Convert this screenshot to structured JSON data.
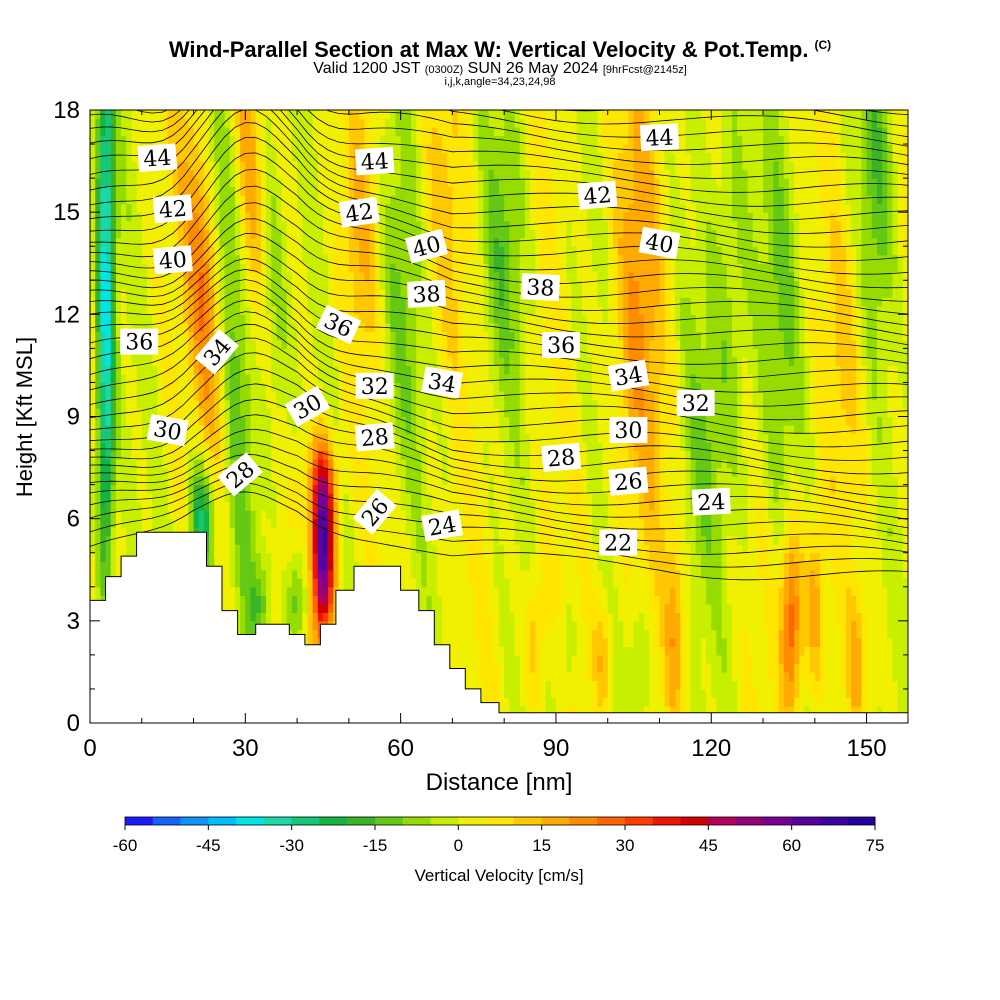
{
  "header": {
    "title": "Wind-Parallel Section at Max W: Vertical Velocity & Pot.Temp.",
    "title_mark": "(C)",
    "subtitle_main_a": "Valid 1200 JST",
    "subtitle_small_a": "(0300Z)",
    "subtitle_main_b": "SUN 26 May 2024",
    "subtitle_small_b": "[9hrFcst@2145z]",
    "subtitle2": "i,j,k,angle=34,23,24,98"
  },
  "chart_data": {
    "type": "heatmap",
    "xlabel": "Distance [nm]",
    "ylabel": "Height [Kft MSL]",
    "xlim": [
      0,
      158
    ],
    "ylim": [
      0,
      18
    ],
    "xticks": [
      0,
      30,
      60,
      90,
      120,
      150
    ],
    "yticks": [
      0,
      3,
      6,
      9,
      12,
      15,
      18
    ],
    "colorbar": {
      "label": "Vertical Velocity [cm/s]",
      "ticks": [
        -60,
        -45,
        -30,
        -15,
        0,
        15,
        30,
        45,
        60,
        75
      ],
      "min": -60,
      "max": 75,
      "step": 5,
      "colors": [
        "#1a1aff",
        "#1463ff",
        "#0b92ff",
        "#00bfff",
        "#00e5e5",
        "#1ad9a8",
        "#14c878",
        "#14b444",
        "#3cb428",
        "#64c814",
        "#96dc00",
        "#c8ee00",
        "#f0f000",
        "#ffe600",
        "#ffc800",
        "#ffaa00",
        "#ff8c00",
        "#ff6400",
        "#ff3c00",
        "#ee1400",
        "#d20000",
        "#b4005a",
        "#960078",
        "#780096",
        "#5a00a0",
        "#3c00a0",
        "#28009c"
      ]
    },
    "theta_labels": [
      {
        "v": "44",
        "x": 13,
        "y": 16.6,
        "r": -4
      },
      {
        "v": "44",
        "x": 55,
        "y": 16.5,
        "r": -4
      },
      {
        "v": "44",
        "x": 110,
        "y": 17.2,
        "r": -3
      },
      {
        "v": "42",
        "x": 16,
        "y": 15.1,
        "r": -5
      },
      {
        "v": "42",
        "x": 52,
        "y": 15,
        "r": -8
      },
      {
        "v": "42",
        "x": 98,
        "y": 15.5,
        "r": -5
      },
      {
        "v": "40",
        "x": 16,
        "y": 13.6,
        "r": -5
      },
      {
        "v": "40",
        "x": 65,
        "y": 14,
        "r": -15
      },
      {
        "v": "40",
        "x": 110,
        "y": 14.1,
        "r": 10
      },
      {
        "v": "36",
        "x": 9.5,
        "y": 11.2,
        "r": 0
      },
      {
        "v": "36",
        "x": 48,
        "y": 11.7,
        "r": 25
      },
      {
        "v": "36",
        "x": 91,
        "y": 11.1,
        "r": 0
      },
      {
        "v": "38",
        "x": 65,
        "y": 12.6,
        "r": -3
      },
      {
        "v": "38",
        "x": 87,
        "y": 12.8,
        "r": 3
      },
      {
        "v": "34",
        "x": 24.5,
        "y": 10.9,
        "r": -50
      },
      {
        "v": "34",
        "x": 68,
        "y": 10,
        "r": 10
      },
      {
        "v": "34",
        "x": 104,
        "y": 10.2,
        "r": -10
      },
      {
        "v": "32",
        "x": 55,
        "y": 9.9,
        "r": 0
      },
      {
        "v": "32",
        "x": 117,
        "y": 9.4,
        "r": 0
      },
      {
        "v": "30",
        "x": 15,
        "y": 8.6,
        "r": 10
      },
      {
        "v": "30",
        "x": 42,
        "y": 9.3,
        "r": -30
      },
      {
        "v": "30",
        "x": 104,
        "y": 8.6,
        "r": 0
      },
      {
        "v": "28",
        "x": 29,
        "y": 7.3,
        "r": -40
      },
      {
        "v": "28",
        "x": 55,
        "y": 8.4,
        "r": -5
      },
      {
        "v": "28",
        "x": 91,
        "y": 7.8,
        "r": -5
      },
      {
        "v": "26",
        "x": 55,
        "y": 6.2,
        "r": -50
      },
      {
        "v": "26",
        "x": 104,
        "y": 7.1,
        "r": -5
      },
      {
        "v": "24",
        "x": 68,
        "y": 5.8,
        "r": -10
      },
      {
        "v": "24",
        "x": 120,
        "y": 6.5,
        "r": -3
      },
      {
        "v": "22",
        "x": 102,
        "y": 5.3,
        "r": 0
      }
    ],
    "terrain_kft": [
      [
        0,
        3.6
      ],
      [
        3,
        3.6
      ],
      [
        3,
        4.3
      ],
      [
        6,
        4.3
      ],
      [
        6,
        4.9
      ],
      [
        9,
        4.9
      ],
      [
        9,
        5.6
      ],
      [
        22.5,
        5.6
      ],
      [
        22.5,
        4.6
      ],
      [
        25.5,
        4.6
      ],
      [
        25.5,
        3.3
      ],
      [
        28.5,
        3.3
      ],
      [
        28.5,
        2.6
      ],
      [
        32,
        2.6
      ],
      [
        32,
        2.9
      ],
      [
        38.5,
        2.9
      ],
      [
        38.5,
        2.6
      ],
      [
        41.5,
        2.6
      ],
      [
        41.5,
        2.3
      ],
      [
        44.5,
        2.3
      ],
      [
        44.5,
        2.9
      ],
      [
        47.5,
        2.9
      ],
      [
        47.5,
        3.9
      ],
      [
        51,
        3.9
      ],
      [
        51,
        4.6
      ],
      [
        57,
        4.6
      ],
      [
        57,
        4.6
      ],
      [
        60,
        4.6
      ],
      [
        60,
        3.9
      ],
      [
        63.5,
        3.9
      ],
      [
        63.5,
        3.3
      ],
      [
        66.5,
        3.3
      ],
      [
        66.5,
        2.3
      ],
      [
        69.5,
        2.3
      ],
      [
        69.5,
        1.6
      ],
      [
        72.5,
        1.6
      ],
      [
        72.5,
        1.0
      ],
      [
        75.5,
        1.0
      ],
      [
        75.5,
        0.6
      ],
      [
        79,
        0.6
      ],
      [
        79,
        0.3
      ],
      [
        158,
        0.3
      ],
      [
        158,
        0
      ],
      [
        0,
        0
      ]
    ]
  }
}
